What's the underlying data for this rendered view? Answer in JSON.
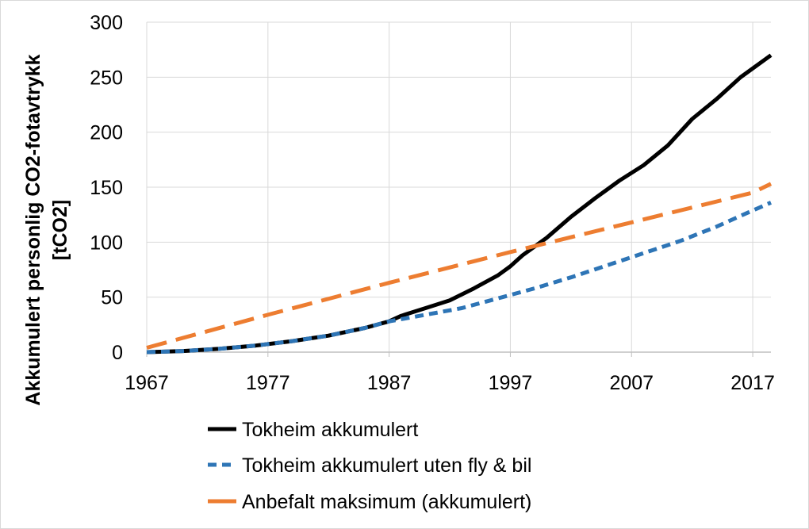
{
  "chart_data": {
    "type": "line",
    "ylabel_line1": "Akkumulert  personlig CO2-fotavtrykk",
    "ylabel_line2": "[tCO2]",
    "xlim": [
      1967,
      2018.5
    ],
    "ylim": [
      0,
      300
    ],
    "x_ticks": [
      1967,
      1977,
      1987,
      1997,
      2007,
      2017
    ],
    "y_ticks": [
      0,
      50,
      100,
      150,
      200,
      250,
      300
    ],
    "grid": true,
    "legend_position": "bottom",
    "series": [
      {
        "name": "Tokheim akkumulert",
        "color": "#000000",
        "style": "solid",
        "x": [
          1967,
          1970,
          1973,
          1976,
          1979,
          1982,
          1985,
          1987,
          1988,
          1990,
          1992,
          1994,
          1996,
          1997,
          1998,
          2000,
          2002,
          2004,
          2006,
          2008,
          2010,
          2012,
          2014,
          2016,
          2018.5
        ],
        "y": [
          0,
          1,
          3,
          6,
          10,
          15,
          22,
          28,
          33,
          40,
          47,
          58,
          70,
          78,
          88,
          104,
          123,
          140,
          156,
          170,
          188,
          212,
          230,
          250,
          270
        ]
      },
      {
        "name": "Tokheim akkumulert uten fly & bil",
        "color": "#2e75b6",
        "style": "dotted",
        "x": [
          1967,
          1970,
          1973,
          1976,
          1979,
          1982,
          1985,
          1987,
          1990,
          1993,
          1996,
          1999,
          2002,
          2005,
          2008,
          2011,
          2014,
          2016,
          2018.5
        ],
        "y": [
          0,
          1,
          3,
          6,
          10,
          15,
          22,
          28,
          34,
          40,
          49,
          58,
          68,
          79,
          90,
          101,
          114,
          124,
          136
        ]
      },
      {
        "name": "Anbefalt maksimum (akkumulert)",
        "color": "#ed7d31",
        "style": "dashed",
        "x": [
          1967,
          1977,
          1987,
          1997,
          2007,
          2017,
          2018.5
        ],
        "y": [
          4,
          34,
          63,
          91,
          118,
          145,
          153
        ]
      }
    ]
  }
}
